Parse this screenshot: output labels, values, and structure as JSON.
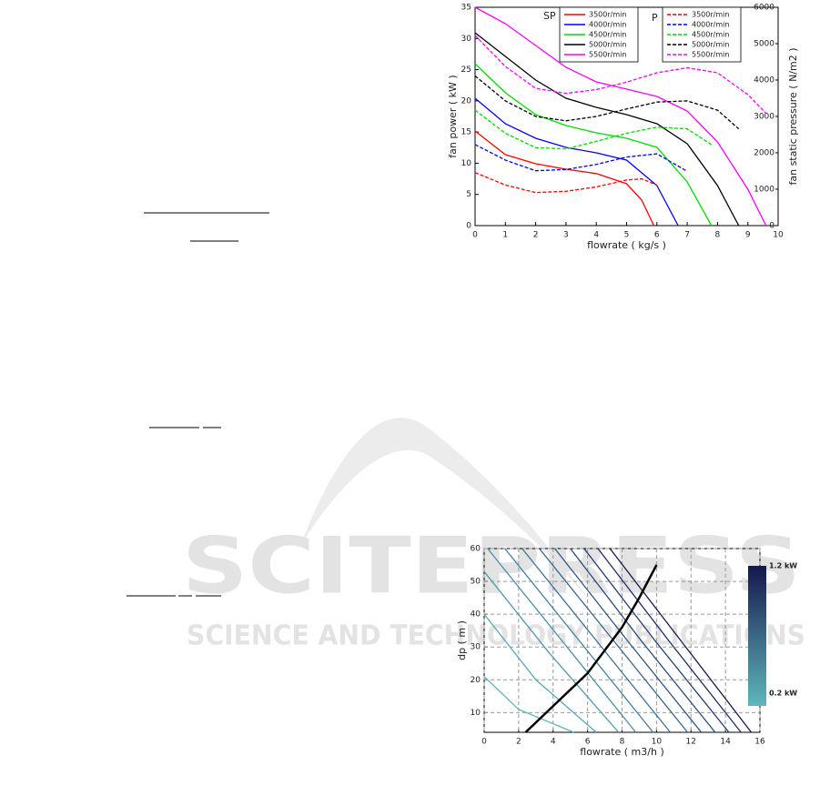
{
  "watermark": {
    "title": "SCITEPRESS",
    "subtitle": "SCIENCE AND TECHNOLOGY PUBLICATIONS"
  },
  "chart_data": [
    {
      "type": "line",
      "xlabel": "flowrate ( kg/s )",
      "ylabel": "fan power ( kW )",
      "y2label": "fan static pressure ( N/m2 )",
      "legend_titles": [
        "SP",
        "P"
      ],
      "xlim": [
        0,
        10
      ],
      "xticks": [
        0,
        1,
        2,
        3,
        4,
        5,
        6,
        7,
        8,
        9,
        10
      ],
      "ylim": [
        0,
        35
      ],
      "yticks": [
        0,
        5,
        10,
        15,
        20,
        25,
        30,
        35
      ],
      "y2lim": [
        0,
        6000
      ],
      "y2ticks": [
        0,
        1000,
        2000,
        3000,
        4000,
        5000,
        6000
      ],
      "grid": false,
      "series": [
        {
          "name": "3500r/min",
          "legend": 0,
          "color": "#ff0000",
          "style": "solid",
          "axis": "y2",
          "x": [
            0,
            1,
            2,
            3,
            4,
            5,
            5.5,
            5.9
          ],
          "values": [
            2600,
            1950,
            1700,
            1550,
            1430,
            1150,
            700,
            0
          ]
        },
        {
          "name": "4000r/min",
          "legend": 0,
          "color": "#0000ff",
          "style": "solid",
          "axis": "y2",
          "x": [
            0,
            1,
            2,
            3,
            4,
            5,
            6,
            6.7
          ],
          "values": [
            3500,
            2800,
            2400,
            2150,
            2000,
            1800,
            1100,
            0
          ]
        },
        {
          "name": "4500r/min",
          "legend": 0,
          "color": "#00dd00",
          "style": "solid",
          "axis": "y2",
          "x": [
            0,
            1,
            2,
            3,
            4,
            5,
            6,
            7,
            7.8
          ],
          "values": [
            4450,
            3650,
            3050,
            2750,
            2550,
            2400,
            2150,
            1200,
            0
          ]
        },
        {
          "name": "5000r/min",
          "legend": 0,
          "color": "#000000",
          "style": "solid",
          "axis": "y2",
          "x": [
            0,
            1,
            2,
            3,
            4,
            5,
            6,
            7,
            8,
            8.7
          ],
          "values": [
            5300,
            4650,
            4000,
            3500,
            3250,
            3050,
            2800,
            2250,
            1100,
            0
          ]
        },
        {
          "name": "5500r/min",
          "legend": 0,
          "color": "#ff00ff",
          "style": "solid",
          "axis": "y2",
          "x": [
            0,
            1,
            2,
            3,
            4,
            5,
            6,
            7,
            8,
            9,
            9.6
          ],
          "values": [
            6000,
            5550,
            4950,
            4350,
            3950,
            3750,
            3550,
            3150,
            2300,
            1000,
            0
          ]
        },
        {
          "name": "3500r/min",
          "legend": 1,
          "color": "#ff0000",
          "style": "dashed",
          "axis": "y",
          "x": [
            0,
            1,
            2,
            3,
            4,
            5,
            5.5,
            6
          ],
          "values": [
            8.5,
            6.5,
            5.3,
            5.5,
            6.2,
            7.3,
            7.5,
            6.5
          ]
        },
        {
          "name": "4000r/min",
          "legend": 1,
          "color": "#0000ff",
          "style": "dashed",
          "axis": "y",
          "x": [
            0,
            1,
            2,
            3,
            4,
            5,
            6,
            7
          ],
          "values": [
            13,
            10.5,
            8.8,
            9,
            9.8,
            11,
            11.5,
            8.7
          ]
        },
        {
          "name": "4500r/min",
          "legend": 1,
          "color": "#00dd00",
          "style": "dashed",
          "axis": "y",
          "x": [
            0,
            1,
            2,
            3,
            4,
            5,
            6,
            7,
            7.8
          ],
          "values": [
            18.5,
            14.8,
            12.5,
            12.3,
            13.5,
            14.8,
            15.8,
            15.5,
            13
          ]
        },
        {
          "name": "5000r/min",
          "legend": 1,
          "color": "#000000",
          "style": "dashed",
          "axis": "y",
          "x": [
            0,
            1,
            2,
            3,
            4,
            5,
            6,
            7,
            8,
            8.7
          ],
          "values": [
            24,
            20,
            17.5,
            16.8,
            17.5,
            18.7,
            19.8,
            20,
            18.5,
            15.5
          ]
        },
        {
          "name": "5500r/min",
          "legend": 1,
          "color": "#ff00ff",
          "style": "dashed",
          "axis": "y",
          "x": [
            0,
            1,
            2,
            3,
            4,
            5,
            6,
            7,
            8,
            9,
            9.6
          ],
          "values": [
            30.5,
            25.5,
            22,
            21.2,
            21.8,
            23,
            24.5,
            25.3,
            24.5,
            21,
            18
          ]
        }
      ]
    },
    {
      "type": "line",
      "xlabel": "flowrate ( m3/h )",
      "ylabel": "dp ( m )",
      "xlim": [
        0,
        16
      ],
      "xticks": [
        0,
        2,
        4,
        6,
        8,
        10,
        12,
        14,
        16
      ],
      "ylim": [
        4,
        60
      ],
      "yticks": [
        10,
        20,
        30,
        40,
        50,
        60
      ],
      "grid": true,
      "colorbar": {
        "max_label": "1.2 kW",
        "min_label": "0.2 kW",
        "colors": [
          "#15184d",
          "#5fb6bb"
        ]
      },
      "series": [
        {
          "color": "#5fb6bb",
          "style": "solid",
          "x": [
            0,
            2,
            5.2
          ],
          "values": [
            21,
            11,
            4
          ]
        },
        {
          "color": "#57a9b2",
          "style": "solid",
          "x": [
            0,
            3,
            6.5
          ],
          "values": [
            40,
            20,
            4
          ]
        },
        {
          "color": "#4f9bab",
          "style": "solid",
          "x": [
            0,
            3.8,
            7.8
          ],
          "values": [
            53,
            28,
            4
          ]
        },
        {
          "color": "#488ea4",
          "style": "solid",
          "x": [
            0.2,
            4.5,
            8.8
          ],
          "values": [
            60,
            32,
            4
          ]
        },
        {
          "color": "#41819d",
          "style": "solid",
          "x": [
            1.2,
            5.5,
            9.8
          ],
          "values": [
            60,
            32,
            4
          ]
        },
        {
          "color": "#3a7396",
          "style": "solid",
          "x": [
            2.2,
            6.5,
            10.8
          ],
          "values": [
            60,
            32,
            4
          ]
        },
        {
          "color": "#33668e",
          "style": "solid",
          "x": [
            3.2,
            7.5,
            11.8
          ],
          "values": [
            60,
            32,
            4
          ]
        },
        {
          "color": "#2d5886",
          "style": "solid",
          "x": [
            4.1,
            8.3,
            12.6
          ],
          "values": [
            60,
            32,
            4
          ]
        },
        {
          "color": "#264a7d",
          "style": "solid",
          "x": [
            5,
            9.1,
            13.4
          ],
          "values": [
            60,
            32,
            4
          ]
        },
        {
          "color": "#203c72",
          "style": "solid",
          "x": [
            5.8,
            9.9,
            14.2
          ],
          "values": [
            60,
            32,
            4
          ]
        },
        {
          "color": "#1a2d66",
          "style": "solid",
          "x": [
            6.6,
            10.7,
            14.9
          ],
          "values": [
            60,
            32,
            4
          ]
        },
        {
          "color": "#15184d",
          "style": "solid",
          "x": [
            7.3,
            11.4,
            15.5
          ],
          "values": [
            60,
            32,
            4
          ]
        },
        {
          "color": "#000000",
          "style": "bold",
          "x": [
            2.4,
            4,
            6,
            8,
            9,
            10
          ],
          "values": [
            4,
            12,
            22,
            36,
            45,
            55
          ]
        }
      ]
    }
  ]
}
